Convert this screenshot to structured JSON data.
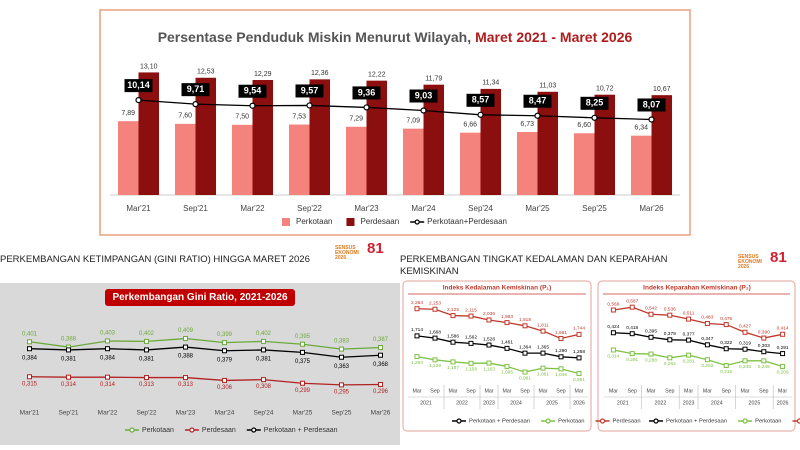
{
  "logos": [
    "SENSUS EKONOMI 2026",
    "81"
  ],
  "chart_data": [
    {
      "type": "bar-line",
      "title": [
        "Persentase Penduduk Miskin Menurut Wilayah,",
        "Maret 2021 - Maret 2026"
      ],
      "categories": [
        "Mar'21",
        "Sep'21",
        "Mar'22",
        "Sep'22",
        "Mar'23",
        "Mar'24",
        "Sep'24",
        "Mar'25",
        "Sep'25",
        "Mar'26"
      ],
      "ylim": [
        0,
        14
      ],
      "series": [
        {
          "name": "Perkotaan",
          "color": "#f4837d",
          "values": [
            7.89,
            7.6,
            7.5,
            7.53,
            7.29,
            7.09,
            6.66,
            6.73,
            6.6,
            6.34
          ],
          "value_labels": [
            "7,89",
            "7,60",
            "7,50",
            "7,53",
            "7,29",
            "7,09",
            "6,66",
            "6,73",
            "6,60",
            "6,34"
          ]
        },
        {
          "name": "Perdesaan",
          "color": "#8b0f0f",
          "values": [
            13.1,
            12.53,
            12.29,
            12.36,
            12.22,
            11.79,
            11.34,
            11.03,
            10.72,
            10.67
          ],
          "value_labels": [
            "13,10",
            "12,53",
            "12,29",
            "12,36",
            "12,22",
            "11,79",
            "11,34",
            "11,03",
            "10,72",
            "10,67"
          ]
        },
        {
          "name": "Perkotaan+Perdesaan",
          "type": "line",
          "color": "#000000",
          "values": [
            10.14,
            9.71,
            9.54,
            9.57,
            9.36,
            9.03,
            8.57,
            8.47,
            8.25,
            8.07
          ],
          "value_labels": [
            "10,14",
            "9,71",
            "9,54",
            "9,57",
            "9,36",
            "9,03",
            "8,57",
            "8,47",
            "8,25",
            "8,07"
          ]
        }
      ]
    },
    {
      "type": "line",
      "heading": "PERKEMBANGAN KETIMPANGAN (GINI RATIO) HINGGA MARET 2026",
      "title": "Perkembangan Gini Ratio, 2021-2026",
      "categories": [
        "Mar'21",
        "Sep'21",
        "Mar'22",
        "Sep'22",
        "Mar'23",
        "Mar'24",
        "Sep'24",
        "Mar'25",
        "Sep'25",
        "Mar'26"
      ],
      "ylim": [
        0.28,
        0.43
      ],
      "series": [
        {
          "name": "Perkotaan",
          "color": "#6aaa3a",
          "values": [
            0.401,
            0.388,
            0.403,
            0.402,
            0.409,
            0.399,
            0.402,
            0.395,
            0.383,
            0.387
          ],
          "value_labels": [
            "0,401",
            "0,388",
            "0,403",
            "0,402",
            "0,409",
            "0,399",
            "0,402",
            "0,395",
            "0,383",
            "0,387"
          ]
        },
        {
          "name": "Perdesaan",
          "color": "#b22222",
          "values": [
            0.315,
            0.314,
            0.314,
            0.313,
            0.313,
            0.306,
            0.308,
            0.299,
            0.295,
            0.296
          ],
          "value_labels": [
            "0,315",
            "0,314",
            "0,314",
            "0,313",
            "0,313",
            "0,306",
            "0,308",
            "0,299",
            "0,295",
            "0,296"
          ]
        },
        {
          "name": "Perkotaan + Perdesaan",
          "color": "#000000",
          "values": [
            0.384,
            0.381,
            0.384,
            0.381,
            0.388,
            0.379,
            0.381,
            0.375,
            0.363,
            0.368
          ],
          "value_labels": [
            "0,384",
            "0,381",
            "0,384",
            "0,381",
            "0,388",
            "0,379",
            "0,381",
            "0,375",
            "0,363",
            "0,368"
          ]
        }
      ]
    },
    {
      "type": "line",
      "heading": "PERKEMBANGAN TINGKAT KEDALAMAN DAN KEPARAHAN KEMISKINAN",
      "title": "Indeks Kedalaman Kemiskinan (P₁)",
      "categories": [
        "Mar",
        "Sep",
        "Mar",
        "Sep",
        "Mar",
        "Mar",
        "Sep",
        "Mar",
        "Sep",
        "Mar"
      ],
      "category_groups": [
        "2021",
        "2021",
        "2022",
        "2022",
        "2023",
        "2024",
        "2024",
        "2025",
        "2025",
        "2026"
      ],
      "ylim": [
        0.8,
        2.4
      ],
      "series": [
        {
          "name": "Perkotaan + Perdesaan",
          "color": "#000000",
          "values": [
            1.714,
            1.668,
            1.586,
            1.562,
            1.528,
            1.461,
            1.364,
            1.365,
            1.29,
            1.268
          ],
          "value_labels": [
            "1,714",
            "1,668",
            "1,586",
            "1,562",
            "1,528",
            "1,461",
            "1,364",
            "1,365",
            "1,290",
            "1,268"
          ]
        },
        {
          "name": "Perkotaan",
          "color": "#7cc242",
          "values": [
            1.294,
            1.229,
            1.187,
            1.158,
            1.163,
            1.095,
            0.981,
            1.061,
            1.046,
            0.951
          ],
          "value_labels": [
            "1,294",
            "1,229",
            "1,187",
            "1,158",
            "1,163",
            "1,095",
            "0,981",
            "1,061",
            "1,046",
            "0,951"
          ]
        },
        {
          "name": "Perdesaan",
          "color": "#c0392b",
          "values": [
            2.264,
            2.253,
            2.125,
            2.115,
            2.036,
            1.983,
            1.918,
            1.811,
            1.661,
            1.744
          ],
          "value_labels": [
            "2,264",
            "2,253",
            "2,125",
            "2,115",
            "2,036",
            "1,983",
            "1,918",
            "1,811",
            "1,661",
            "1,744"
          ]
        }
      ]
    },
    {
      "type": "line",
      "title": "Indeks Keparahan Kemiskinan (P₂)",
      "categories": [
        "Mar",
        "Sep",
        "Mar",
        "Sep",
        "Mar",
        "Mar",
        "Sep",
        "Mar",
        "Sep",
        "Mar"
      ],
      "category_groups": [
        "2021",
        "2021",
        "2022",
        "2022",
        "2023",
        "2024",
        "2024",
        "2025",
        "2025",
        "2026"
      ],
      "ylim": [
        0.18,
        0.62
      ],
      "series": [
        {
          "name": "Perkotaan + Perdesaan",
          "color": "#000000",
          "values": [
            0.424,
            0.418,
            0.395,
            0.379,
            0.377,
            0.347,
            0.322,
            0.319,
            0.303,
            0.291
          ],
          "value_labels": [
            "0,424",
            "0,418",
            "0,395",
            "0,379",
            "0,377",
            "0,347",
            "0,322",
            "0,319",
            "0,303",
            "0,291"
          ]
        },
        {
          "name": "Perkotaan",
          "color": "#7cc242",
          "values": [
            0.314,
            0.291,
            0.288,
            0.264,
            0.281,
            0.252,
            0.215,
            0.245,
            0.245,
            0.209
          ],
          "value_labels": [
            "0,314",
            "0,291",
            "0,288",
            "0,264",
            "0,281",
            "0,252",
            "0,215",
            "0,245",
            "0,245",
            "0,209"
          ]
        },
        {
          "name": "Perdesaan",
          "color": "#c0392b",
          "values": [
            0.569,
            0.587,
            0.542,
            0.536,
            0.511,
            0.483,
            0.476,
            0.427,
            0.39,
            0.414
          ],
          "value_labels": [
            "0,569",
            "0,587",
            "0,542",
            "0,536",
            "0,511",
            "0,483",
            "0,476",
            "0,427",
            "0,390",
            "0,414"
          ]
        }
      ]
    }
  ]
}
